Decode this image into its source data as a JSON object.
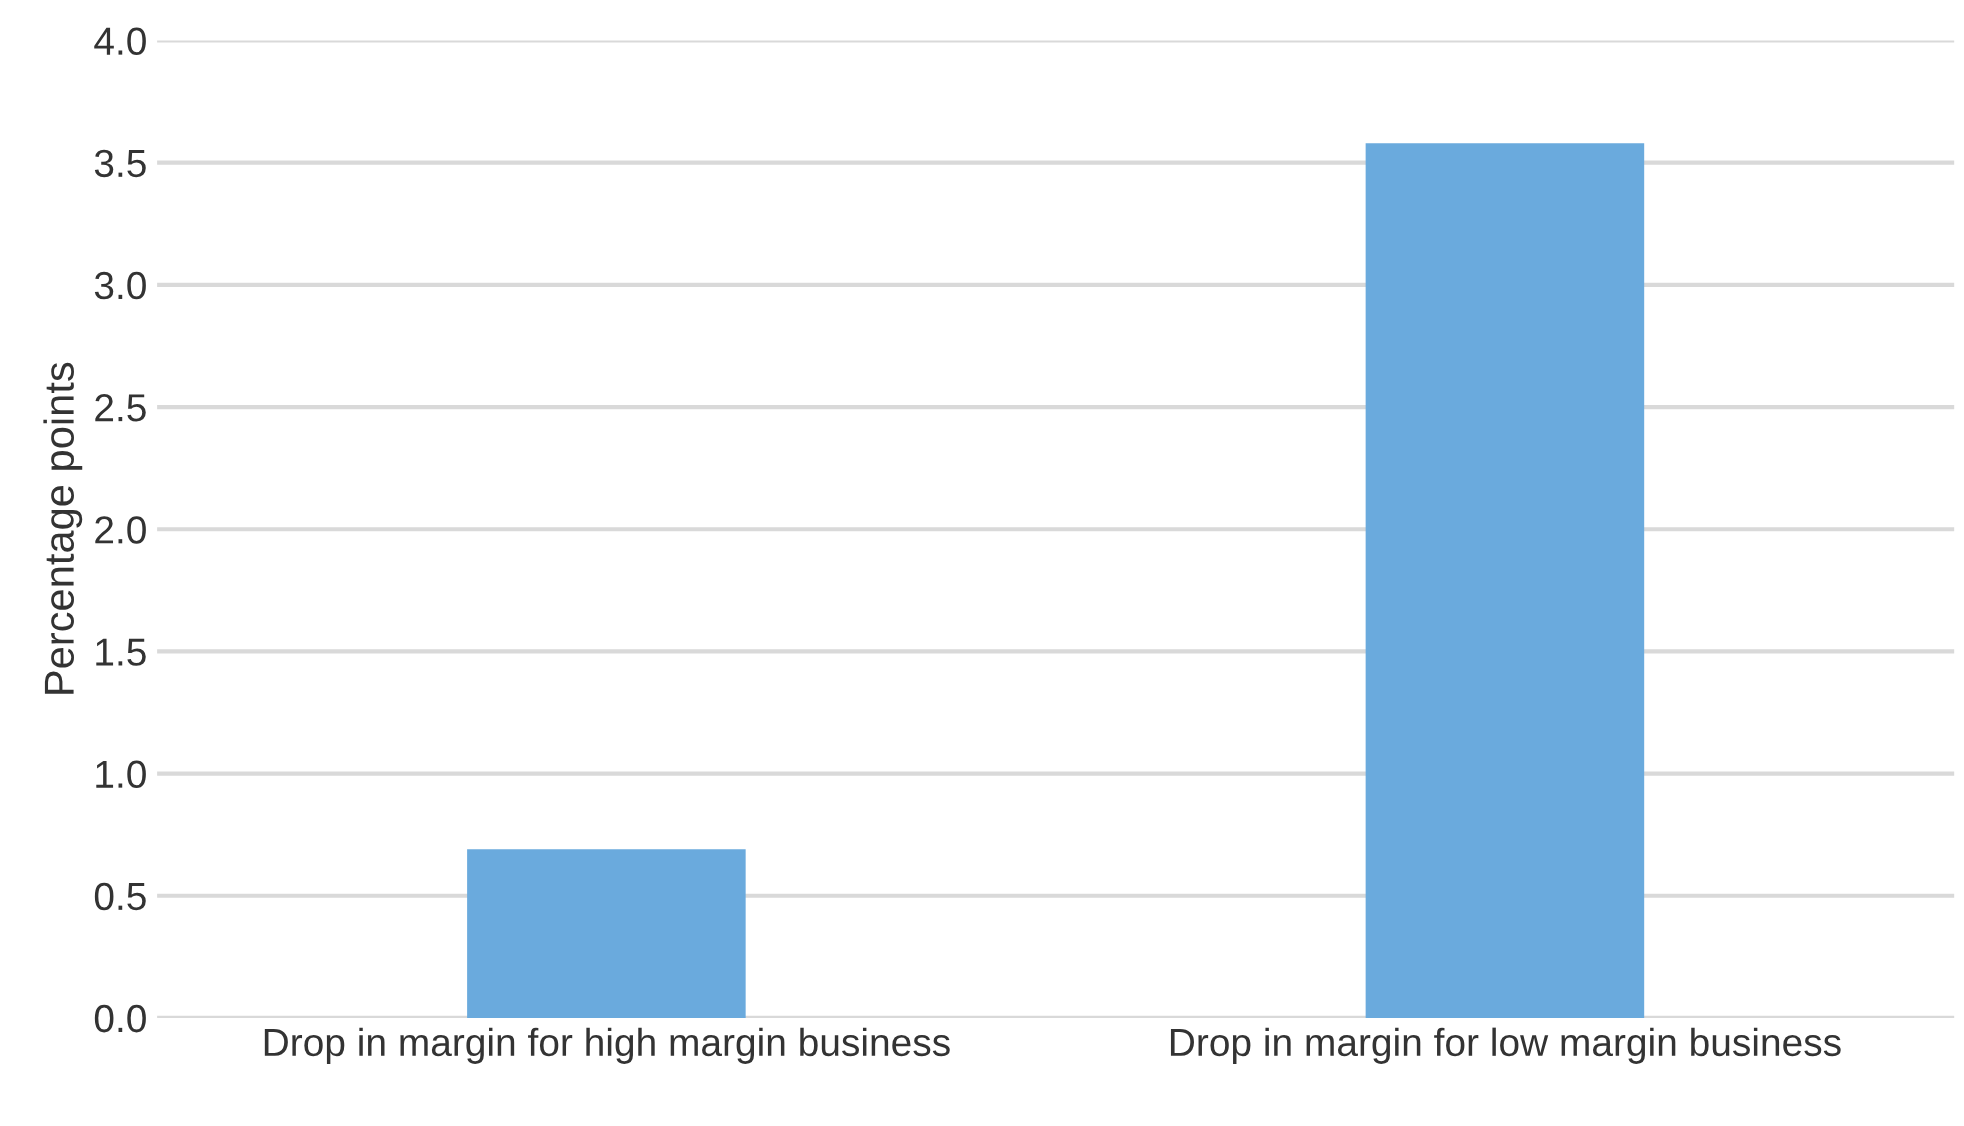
{
  "chart_data": {
    "type": "bar",
    "ylabel": "Percentage points",
    "categories": [
      "Drop in margin for high margin business",
      "Drop in margin for low margin business"
    ],
    "values": [
      0.69,
      3.58
    ],
    "color": "#6aaadd",
    "ylim": [
      0,
      4
    ],
    "yticks": [
      {
        "value": 0,
        "label": "0.0"
      },
      {
        "value": 0.5,
        "label": "0.5"
      },
      {
        "value": 1,
        "label": "1.0"
      },
      {
        "value": 1.5,
        "label": "1.5"
      },
      {
        "value": 2,
        "label": "2.0"
      },
      {
        "value": 2.5,
        "label": "2.5"
      },
      {
        "value": 3,
        "label": "3.0"
      },
      {
        "value": 3.5,
        "label": "3.5"
      },
      {
        "value": 4,
        "label": "4.0"
      }
    ],
    "grid": "y",
    "legend": false
  }
}
